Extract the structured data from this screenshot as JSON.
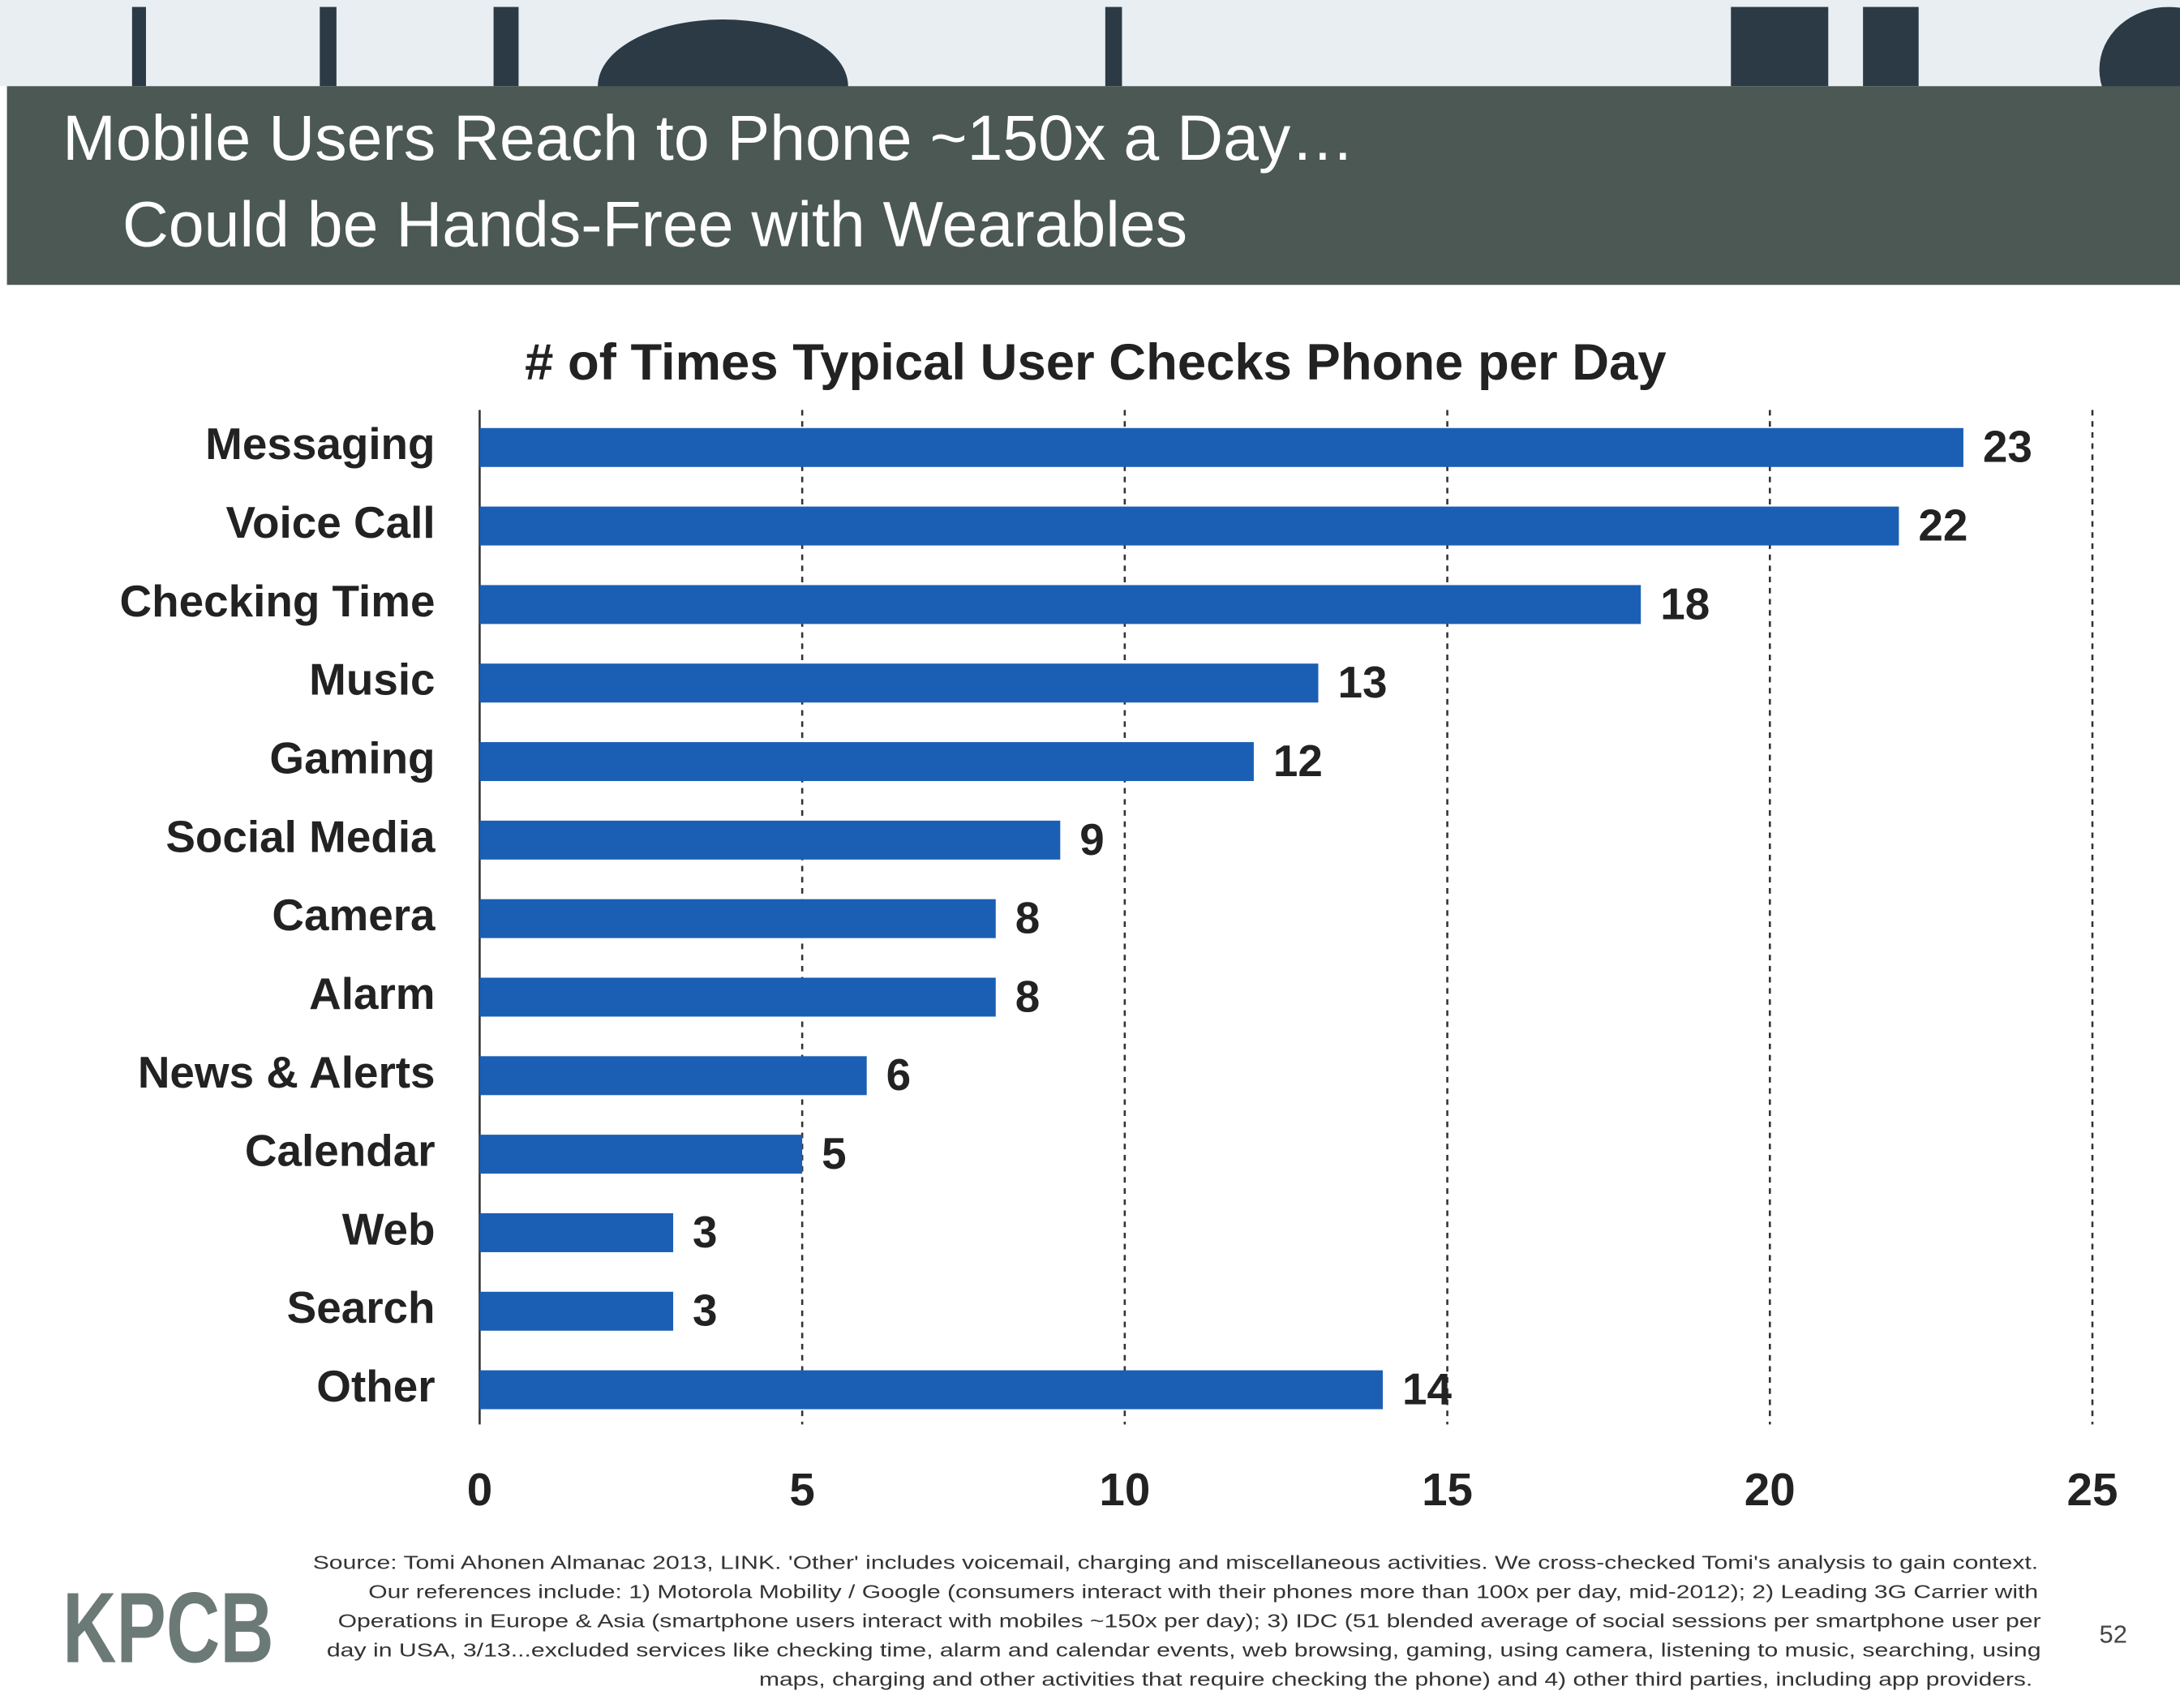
{
  "slide_title": [
    "Mobile Users Reach to Phone ~150x a Day…",
    "Could be Hands-Free with Wearables"
  ],
  "chart_data": {
    "type": "bar",
    "orientation": "horizontal",
    "title": "# of Times Typical User Checks Phone per Day",
    "categories": [
      "Messaging",
      "Voice Call",
      "Checking Time",
      "Music",
      "Gaming",
      "Social Media",
      "Camera",
      "Alarm",
      "News & Alerts",
      "Calendar",
      "Web",
      "Search",
      "Other"
    ],
    "values": [
      23,
      22,
      18,
      13,
      12,
      9,
      8,
      8,
      6,
      5,
      3,
      3,
      14
    ],
    "color": "#1a5fb4",
    "xlim": [
      0,
      25
    ],
    "xticks": [
      0,
      5,
      10,
      15,
      20,
      25
    ],
    "grid": true
  },
  "source": [
    "Source: Tomi Ahonen Almanac 2013, LINK. 'Other' includes voicemail, charging and miscellaneous activities. We cross-checked Tomi's analysis to gain context.",
    "Our references include: 1) Motorola Mobility / Google (consumers interact with their phones more than 100x per day, mid-2012); 2) Leading 3G Carrier with",
    "Operations in Europe & Asia (smartphone users interact with mobiles ~150x per day); 3) IDC (51 blended average of social sessions per smartphone user per",
    "day in USA, 3/13...excluded services like checking time, alarm and calendar events, web browsing, gaming, using camera, listening to music, searching, using",
    "maps, charging and other activities that require checking the phone) and 4) other third parties, including app providers."
  ],
  "logo": "KPCB",
  "page_number": "52"
}
